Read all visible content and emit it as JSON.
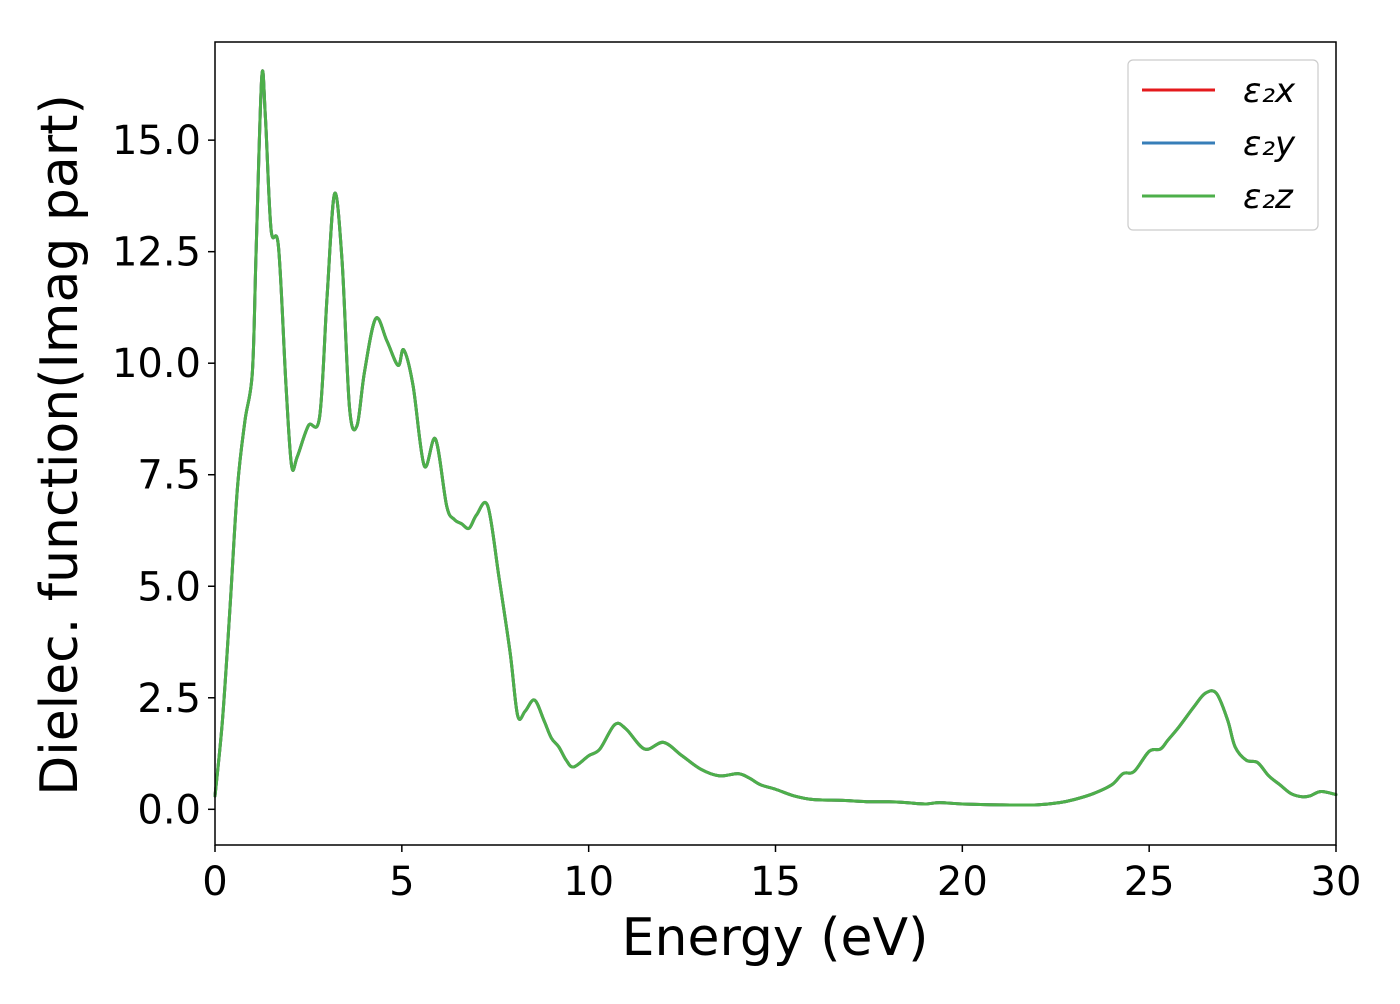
{
  "chart_data": {
    "type": "line",
    "xlabel": "Energy (eV)",
    "ylabel": "Dielec. function(Imag part)",
    "xlim": [
      0,
      30
    ],
    "ylim": [
      -0.8,
      17.2
    ],
    "xticks": [
      0,
      5,
      10,
      15,
      20,
      25,
      30
    ],
    "xtick_labels": [
      "0",
      "5",
      "10",
      "15",
      "20",
      "25",
      "30"
    ],
    "yticks": [
      0.0,
      2.5,
      5.0,
      7.5,
      10.0,
      12.5,
      15.0
    ],
    "ytick_labels": [
      "0.0",
      "2.5",
      "5.0",
      "7.5",
      "10.0",
      "12.5",
      "15.0"
    ],
    "grid": false,
    "legend_position": "top-right",
    "x": [
      0.0,
      0.2,
      0.4,
      0.6,
      0.8,
      1.0,
      1.1,
      1.25,
      1.35,
      1.5,
      1.7,
      1.9,
      2.05,
      2.2,
      2.5,
      2.8,
      3.0,
      3.2,
      3.4,
      3.6,
      3.8,
      4.0,
      4.3,
      4.6,
      4.9,
      5.05,
      5.3,
      5.6,
      5.9,
      6.2,
      6.4,
      6.6,
      6.8,
      7.0,
      7.3,
      7.6,
      7.9,
      8.1,
      8.3,
      8.55,
      8.8,
      9.0,
      9.2,
      9.4,
      9.6,
      10.0,
      10.3,
      10.7,
      11.0,
      11.5,
      12.0,
      12.5,
      13.0,
      13.5,
      14.0,
      14.3,
      14.6,
      15.0,
      15.5,
      16.0,
      16.8,
      17.5,
      18.0,
      18.5,
      19.0,
      19.4,
      20.0,
      21.0,
      22.0,
      22.6,
      23.0,
      23.5,
      24.0,
      24.3,
      24.6,
      25.0,
      25.3,
      25.5,
      25.8,
      26.2,
      26.5,
      26.8,
      27.1,
      27.3,
      27.6,
      27.9,
      28.2,
      28.5,
      28.8,
      29.1,
      29.3,
      29.6,
      30.0
    ],
    "series": [
      {
        "name": "ε₂x",
        "color": "#e41a1c",
        "values": [
          0.3,
          2.0,
          4.5,
          7.2,
          8.7,
          9.8,
          12.5,
          16.4,
          15.5,
          13.0,
          12.6,
          9.5,
          7.7,
          7.9,
          8.6,
          8.8,
          11.5,
          13.8,
          12.3,
          9.0,
          8.6,
          9.8,
          11.0,
          10.5,
          9.95,
          10.3,
          9.5,
          7.7,
          8.3,
          6.8,
          6.5,
          6.4,
          6.3,
          6.6,
          6.8,
          5.2,
          3.5,
          2.1,
          2.2,
          2.45,
          2.0,
          1.6,
          1.4,
          1.1,
          0.95,
          1.2,
          1.35,
          1.9,
          1.8,
          1.35,
          1.5,
          1.2,
          0.9,
          0.75,
          0.8,
          0.7,
          0.55,
          0.45,
          0.3,
          0.22,
          0.2,
          0.17,
          0.17,
          0.15,
          0.12,
          0.15,
          0.12,
          0.1,
          0.1,
          0.15,
          0.22,
          0.35,
          0.55,
          0.8,
          0.85,
          1.3,
          1.35,
          1.55,
          1.85,
          2.3,
          2.6,
          2.6,
          2.0,
          1.4,
          1.1,
          1.05,
          0.75,
          0.55,
          0.35,
          0.28,
          0.3,
          0.4,
          0.33
        ]
      },
      {
        "name": "ε₂y",
        "color": "#377eb8",
        "values": [
          0.3,
          2.0,
          4.5,
          7.2,
          8.7,
          9.8,
          12.5,
          16.4,
          15.5,
          13.0,
          12.6,
          9.5,
          7.7,
          7.9,
          8.6,
          8.8,
          11.5,
          13.8,
          12.3,
          9.0,
          8.6,
          9.8,
          11.0,
          10.5,
          9.95,
          10.3,
          9.5,
          7.7,
          8.3,
          6.8,
          6.5,
          6.4,
          6.3,
          6.6,
          6.8,
          5.2,
          3.5,
          2.1,
          2.2,
          2.45,
          2.0,
          1.6,
          1.4,
          1.1,
          0.95,
          1.2,
          1.35,
          1.9,
          1.8,
          1.35,
          1.5,
          1.2,
          0.9,
          0.75,
          0.8,
          0.7,
          0.55,
          0.45,
          0.3,
          0.22,
          0.2,
          0.17,
          0.17,
          0.15,
          0.12,
          0.15,
          0.12,
          0.1,
          0.1,
          0.15,
          0.22,
          0.35,
          0.55,
          0.8,
          0.85,
          1.3,
          1.35,
          1.55,
          1.85,
          2.3,
          2.6,
          2.6,
          2.0,
          1.4,
          1.1,
          1.05,
          0.75,
          0.55,
          0.35,
          0.28,
          0.3,
          0.4,
          0.33
        ]
      },
      {
        "name": "ε₂z",
        "color": "#4daf4a",
        "values": [
          0.3,
          2.0,
          4.5,
          7.2,
          8.7,
          9.8,
          12.5,
          16.4,
          15.5,
          13.0,
          12.6,
          9.5,
          7.7,
          7.9,
          8.6,
          8.8,
          11.5,
          13.8,
          12.3,
          9.0,
          8.6,
          9.8,
          11.0,
          10.5,
          9.95,
          10.3,
          9.5,
          7.7,
          8.3,
          6.8,
          6.5,
          6.4,
          6.3,
          6.6,
          6.8,
          5.2,
          3.5,
          2.1,
          2.2,
          2.45,
          2.0,
          1.6,
          1.4,
          1.1,
          0.95,
          1.2,
          1.35,
          1.9,
          1.8,
          1.35,
          1.5,
          1.2,
          0.9,
          0.75,
          0.8,
          0.7,
          0.55,
          0.45,
          0.3,
          0.22,
          0.2,
          0.17,
          0.17,
          0.15,
          0.12,
          0.15,
          0.12,
          0.1,
          0.1,
          0.15,
          0.22,
          0.35,
          0.55,
          0.8,
          0.85,
          1.3,
          1.35,
          1.55,
          1.85,
          2.3,
          2.6,
          2.6,
          2.0,
          1.4,
          1.1,
          1.05,
          0.75,
          0.55,
          0.35,
          0.28,
          0.3,
          0.4,
          0.33
        ]
      }
    ]
  }
}
